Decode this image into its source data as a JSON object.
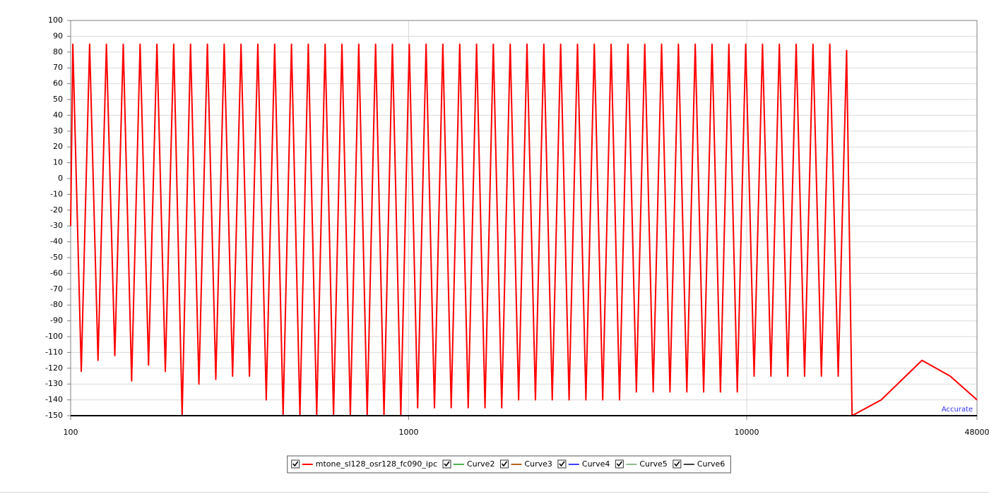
{
  "chart_data": {
    "type": "line",
    "annotation": "Accurate",
    "xscale": "log",
    "grid": true,
    "xlim": [
      100,
      48000
    ],
    "xticks": [
      100,
      1000,
      10000,
      48000
    ],
    "ylim": [
      -150,
      100
    ],
    "yticks": [
      -150,
      -140,
      -130,
      -120,
      -110,
      -100,
      -90,
      -80,
      -70,
      -60,
      -50,
      -40,
      -30,
      -20,
      -10,
      0,
      10,
      20,
      30,
      40,
      50,
      60,
      70,
      80,
      90,
      100
    ],
    "series": [
      {
        "name": "mtone_sl128_osr128_fc090_ipc",
        "color": "#ff0000",
        "x": [
          100,
          101.5,
          107.5,
          113.8,
          120.5,
          127.6,
          135.1,
          143.1,
          151.5,
          160.5,
          170.0,
          180.0,
          190.6,
          201.8,
          213.7,
          226.3,
          239.6,
          253.8,
          268.8,
          284.6,
          301.4,
          319.2,
          338.0,
          357.9,
          379.0,
          401.4,
          425.1,
          450.1,
          476.7,
          504.7,
          534.5,
          566.0,
          599.4,
          634.7,
          672.1,
          711.8,
          753.8,
          798.2,
          845.3,
          895.1,
          947.9,
          1004,
          1063,
          1126,
          1192,
          1262,
          1336,
          1416,
          1500,
          1588,
          1682,
          1780,
          1885,
          1997,
          2115,
          2239,
          2371,
          2511,
          2659,
          2816,
          2982,
          3158,
          3344,
          3541,
          3750,
          3971,
          4205,
          4453,
          4716,
          4994,
          5289,
          5600,
          5930,
          6280,
          6651,
          7042,
          7457,
          7897,
          8363,
          8856,
          9378,
          9931,
          10517,
          11137,
          11794,
          12489,
          13226,
          14005,
          14831,
          15705,
          16632,
          17612,
          18651,
          19750,
          20500,
          25000,
          33000,
          40000,
          48000
        ],
        "values": [
          -30,
          85,
          -122,
          85,
          -115,
          85,
          -112,
          85,
          -128,
          85,
          -118,
          85,
          -122,
          85,
          -150,
          85,
          -130,
          85,
          -127,
          85,
          -125,
          85,
          -125,
          85,
          -140,
          85,
          -150,
          85,
          -150,
          85,
          -150,
          85,
          -150,
          85,
          -150,
          85,
          -150,
          85,
          -150,
          85,
          -150,
          85,
          -145,
          85,
          -145,
          85,
          -145,
          85,
          -145,
          85,
          -145,
          85,
          -145,
          85,
          -140,
          85,
          -140,
          85,
          -140,
          85,
          -140,
          85,
          -140,
          85,
          -140,
          85,
          -140,
          85,
          -135,
          85,
          -135,
          85,
          -135,
          85,
          -135,
          85,
          -135,
          85,
          -135,
          85,
          -135,
          85,
          -125,
          85,
          -125,
          85,
          -125,
          85,
          -125,
          85,
          -125,
          85,
          -125,
          81,
          -150,
          -140,
          -115,
          -125,
          -140
        ]
      }
    ],
    "legend_entries": [
      {
        "name": "mtone_sl128_osr128_fc090_ipc",
        "color": "#ff0000"
      },
      {
        "name": "Curve2",
        "color": "#4caf50"
      },
      {
        "name": "Curve3",
        "color": "#b5651d"
      },
      {
        "name": "Curve4",
        "color": "#3f3fff"
      },
      {
        "name": "Curve5",
        "color": "#8fbc8f"
      },
      {
        "name": "Curve6",
        "color": "#404040"
      }
    ]
  }
}
